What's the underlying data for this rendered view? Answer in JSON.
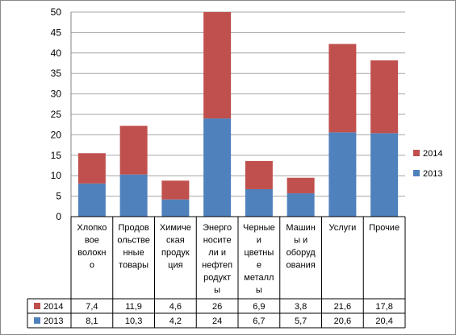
{
  "chart_data": {
    "type": "bar",
    "stacked": true,
    "ylim": [
      0,
      50
    ],
    "yticks": [
      0,
      5,
      10,
      15,
      20,
      25,
      30,
      35,
      40,
      45,
      50
    ],
    "grid": true,
    "legend_position": "right",
    "data_table": true,
    "categories": [
      [
        "Хлопко",
        "вое",
        "волокн",
        "о"
      ],
      [
        "Продов",
        "ольстве",
        "нные",
        "товары"
      ],
      [
        "Химиче",
        "ская",
        "продук",
        "ция"
      ],
      [
        "Энерго",
        "носите",
        "ли и",
        "нефтеп",
        "родукт",
        "ы"
      ],
      [
        "Черные",
        "и",
        "цветны",
        "е",
        "металл",
        "ы"
      ],
      [
        "Машин",
        "ы и",
        "оборуд",
        "ования"
      ],
      [
        "Услуги"
      ],
      [
        "Прочие"
      ]
    ],
    "series": [
      {
        "name": "2013",
        "color": "#4f81bd",
        "values": [
          8.1,
          10.3,
          4.2,
          24,
          6.7,
          5.7,
          20.6,
          20.4
        ],
        "labels": [
          "8,1",
          "10,3",
          "4,2",
          "24",
          "6,7",
          "5,7",
          "20,6",
          "20,4"
        ]
      },
      {
        "name": "2014",
        "color": "#c0504d",
        "values": [
          7.4,
          11.9,
          4.6,
          26,
          6.9,
          3.8,
          21.6,
          17.8
        ],
        "labels": [
          "7,4",
          "11,9",
          "4,6",
          "26",
          "6,9",
          "3,8",
          "21,6",
          "17,8"
        ]
      }
    ]
  }
}
